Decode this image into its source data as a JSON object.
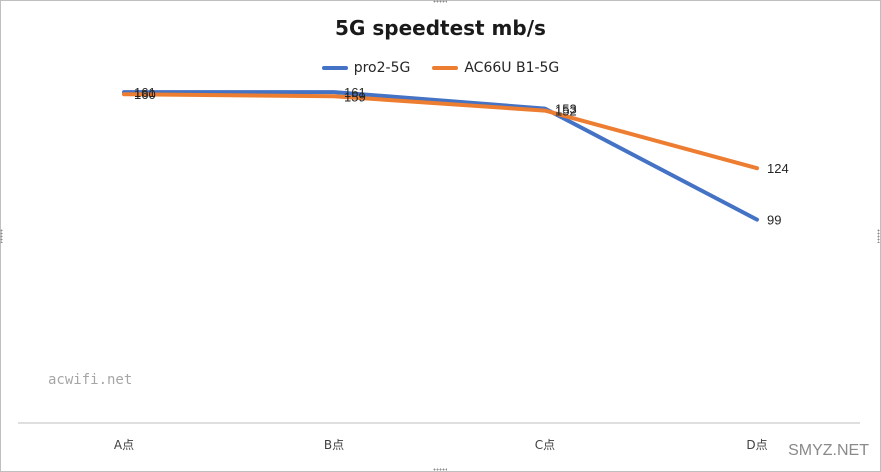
{
  "chart_data": {
    "type": "line",
    "title": "5G speedtest  mb/s",
    "categories": [
      "A点",
      "B点",
      "C点",
      "D点"
    ],
    "series": [
      {
        "name": "pro2-5G",
        "values": [
          161,
          161,
          153,
          99
        ],
        "color": "#4472c4"
      },
      {
        "name": "AC66U B1-5G",
        "values": [
          160,
          159,
          152,
          124
        ],
        "color": "#ed7d31"
      }
    ],
    "ylim": [
      0,
      200
    ],
    "grid": false,
    "legend_position": "top"
  },
  "watermark": "acwifi.net",
  "site_mark": "SMYZ.NET"
}
